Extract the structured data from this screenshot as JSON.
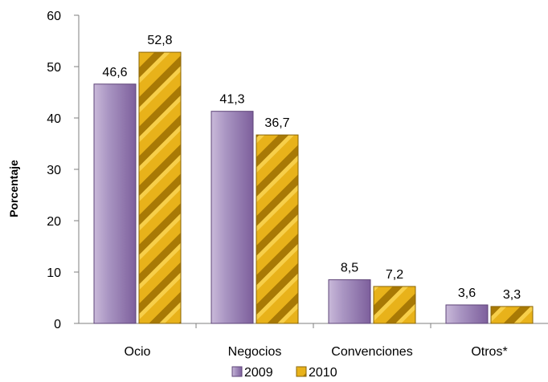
{
  "chart_data": {
    "type": "bar",
    "categories": [
      "Ocio",
      "Negocios",
      "Convenciones",
      "Otros*"
    ],
    "series": [
      {
        "name": "2009",
        "values": [
          46.6,
          41.3,
          8.5,
          3.6
        ],
        "labels": [
          "46,6",
          "41,3",
          "8,5",
          "3,6"
        ],
        "color": "#9a7fb0"
      },
      {
        "name": "2010",
        "values": [
          52.8,
          36.7,
          7.2,
          3.3
        ],
        "labels": [
          "52,8",
          "36,7",
          "7,2",
          "3,3"
        ],
        "color": "#d6a10a"
      }
    ],
    "ylabel": "Porcentaje",
    "xlabel": "",
    "ylim": [
      0,
      60
    ],
    "yticks": [
      0,
      10,
      20,
      30,
      40,
      50,
      60
    ],
    "grid": false,
    "legend_position": "bottom"
  }
}
